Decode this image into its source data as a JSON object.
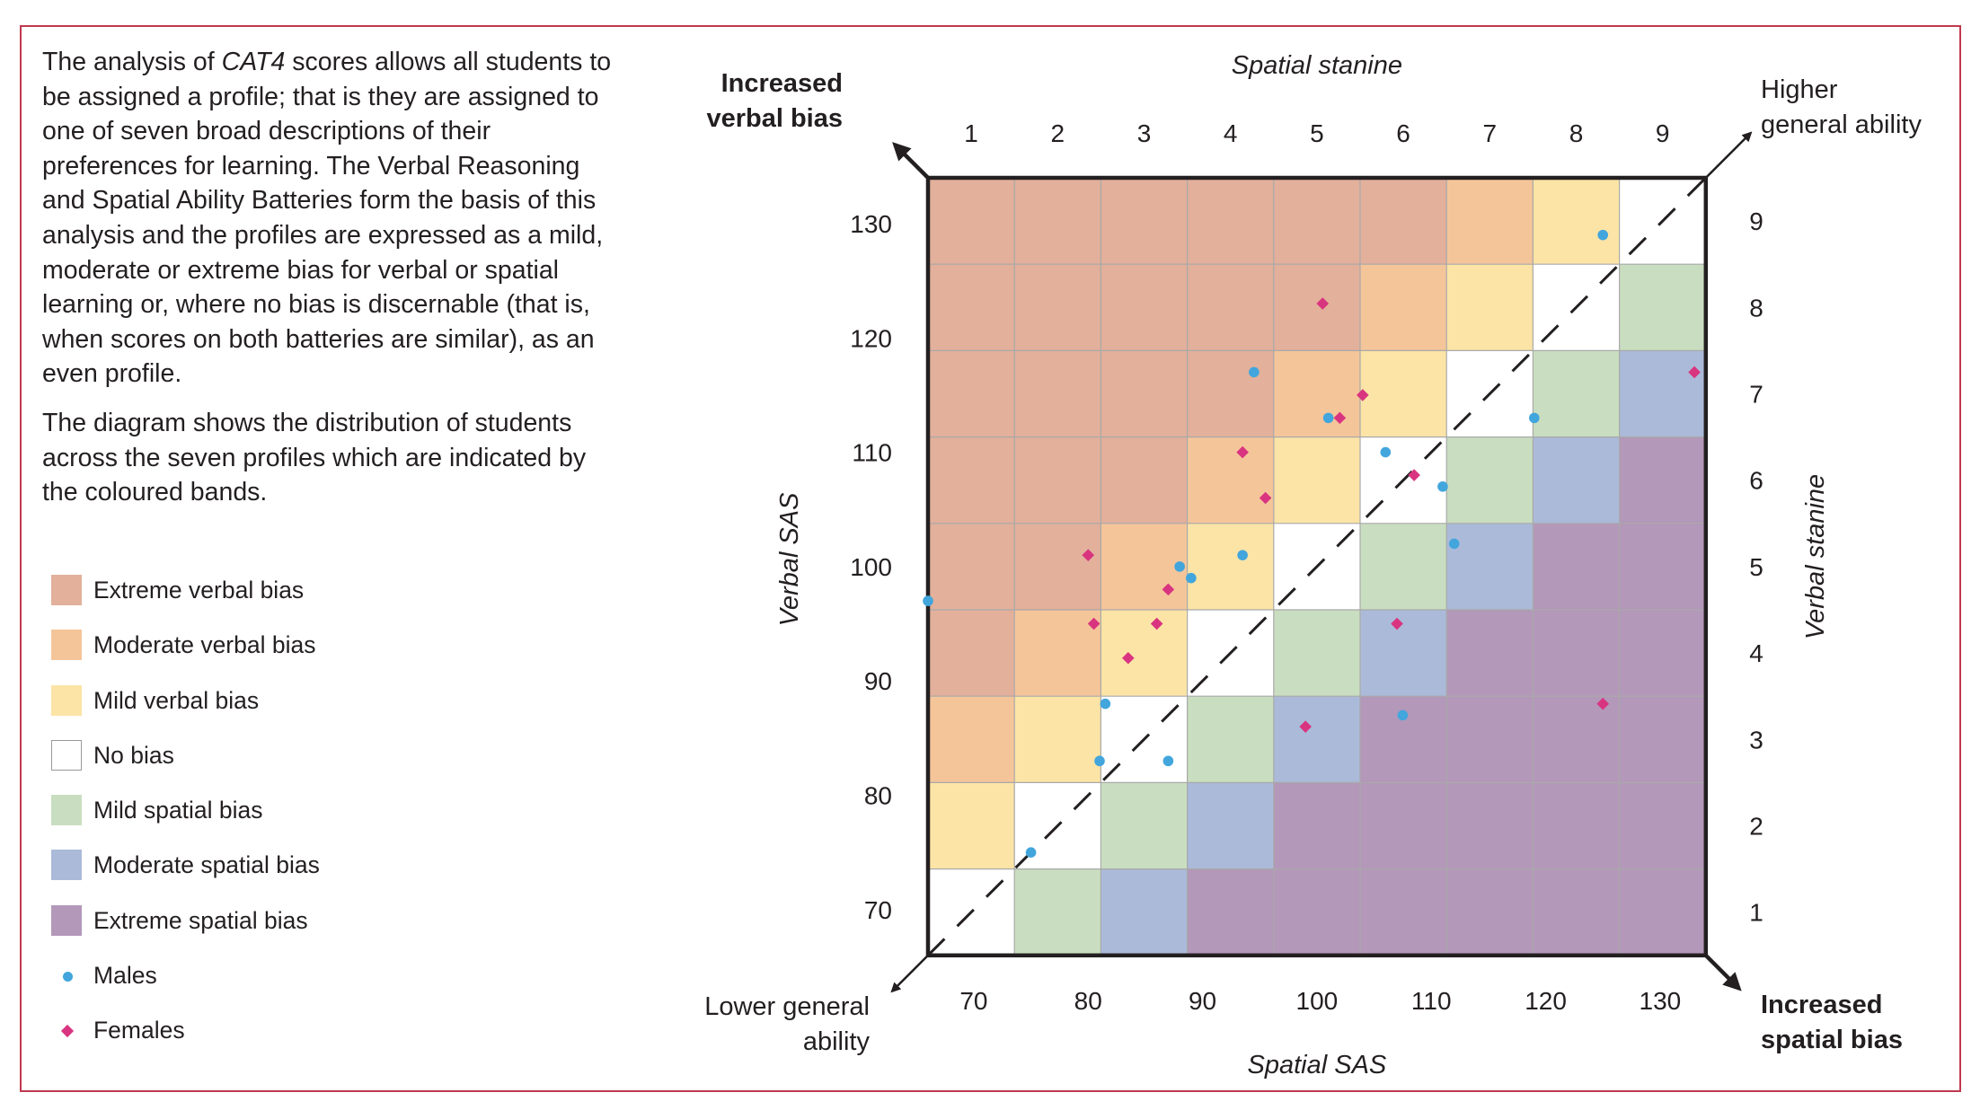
{
  "intro": {
    "p1_a": "The analysis of ",
    "p1_em": "CAT4",
    "p1_b": " scores allows all students to be assigned a profile; that is they are assigned to one of seven broad descriptions of their preferences for learning. The Verbal Reasoning and Spatial Ability Batteries form the basis of this analysis and the profiles are expressed as a mild, moderate or extreme bias for verbal or spatial learning or, where no bias is discernable (that is, when scores on both batteries are similar), as an even profile.",
    "p2": "The diagram shows the distribution of students across the seven profiles which are indicated by the coloured bands."
  },
  "legend": [
    {
      "label": "Extreme verbal bias",
      "color": "#e2b09b",
      "icon": "swatch"
    },
    {
      "label": "Moderate verbal bias",
      "color": "#f5c59a",
      "icon": "swatch"
    },
    {
      "label": "Mild verbal bias",
      "color": "#fce4a6",
      "icon": "swatch"
    },
    {
      "label": "No bias",
      "color": "#ffffff",
      "icon": "swatch"
    },
    {
      "label": "Mild spatial bias",
      "color": "#c9dec0",
      "icon": "swatch"
    },
    {
      "label": "Moderate spatial bias",
      "color": "#abbad9",
      "icon": "swatch"
    },
    {
      "label": "Extreme spatial bias",
      "color": "#b398ba",
      "icon": "swatch"
    },
    {
      "label": "Males",
      "color": "#42a6dd",
      "icon": "dot-marker"
    },
    {
      "label": "Females",
      "color": "#d9347f",
      "icon": "diamond-marker"
    }
  ],
  "chart_data": {
    "type": "scatter",
    "title": "",
    "xlabel": "Spatial SAS",
    "ylabel": "Verbal SAS",
    "top_axis_label": "Spatial stanine",
    "right_axis_label": "Verbal stanine",
    "xlim": [
      66,
      134
    ],
    "ylim": [
      66,
      134
    ],
    "x_ticks": [
      "70",
      "80",
      "90",
      "100",
      "110",
      "120",
      "130"
    ],
    "y_ticks": [
      "70",
      "80",
      "90",
      "100",
      "110",
      "120",
      "130"
    ],
    "stanine_ticks": [
      "1",
      "2",
      "3",
      "4",
      "5",
      "6",
      "7",
      "8",
      "9"
    ],
    "corner_labels": {
      "top_left": [
        "Increased",
        "verbal bias"
      ],
      "top_right": [
        "Higher",
        "general ability"
      ],
      "bottom_left": [
        "Lower general",
        "ability"
      ],
      "bottom_right": [
        "Increased",
        "spatial bias"
      ]
    },
    "band_colors": {
      "-4": "#e2b09b",
      "-3": "#e2b09b",
      "-2": "#f5c59a",
      "-1": "#fce4a6",
      "0": "#ffffff",
      "1": "#c9dec0",
      "2": "#abbad9",
      "3": "#b398ba",
      "4": "#b398ba"
    },
    "diagonal": "dashed",
    "grid": true,
    "series": [
      {
        "name": "Males",
        "marker": "circle",
        "color": "#42a6dd",
        "points": [
          [
            66,
            97
          ],
          [
            75,
            75
          ],
          [
            81,
            83
          ],
          [
            81.5,
            88
          ],
          [
            87,
            83
          ],
          [
            88,
            100
          ],
          [
            89,
            99
          ],
          [
            93.5,
            101
          ],
          [
            94.5,
            117
          ],
          [
            101,
            113
          ],
          [
            106,
            110
          ],
          [
            107.5,
            87
          ],
          [
            111,
            107
          ],
          [
            112,
            102
          ],
          [
            119,
            113
          ],
          [
            125,
            129
          ]
        ]
      },
      {
        "name": "Females",
        "marker": "diamond",
        "color": "#d9347f",
        "points": [
          [
            80,
            101
          ],
          [
            80.5,
            95
          ],
          [
            83.5,
            92
          ],
          [
            86,
            95
          ],
          [
            87,
            98
          ],
          [
            93.5,
            110
          ],
          [
            95.5,
            106
          ],
          [
            99,
            86
          ],
          [
            100.5,
            123
          ],
          [
            102,
            113
          ],
          [
            104,
            115
          ],
          [
            107,
            95
          ],
          [
            108.5,
            108
          ],
          [
            125,
            88
          ],
          [
            133,
            117
          ]
        ]
      }
    ]
  }
}
